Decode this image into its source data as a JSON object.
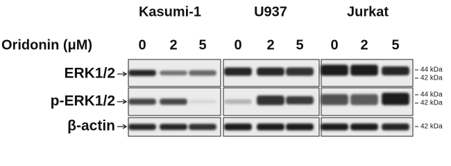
{
  "header": {
    "cell_lines": [
      "Kasumi-1",
      "U937",
      "Jurkat"
    ],
    "treatment_label": "Oridonin (μM)",
    "doses": [
      [
        "0",
        "2",
        "5"
      ],
      [
        "0",
        "2",
        "5"
      ],
      [
        "0",
        "2",
        "5"
      ]
    ]
  },
  "blots": [
    {
      "label": "ERK1/2",
      "markers": [
        "44 kDa",
        "42 kDa"
      ]
    },
    {
      "label": "p-ERK1/2",
      "markers": [
        "44 kDa",
        "42 kDa"
      ]
    },
    {
      "label": "β-actin",
      "markers": [
        "42 kDa"
      ]
    }
  ]
}
